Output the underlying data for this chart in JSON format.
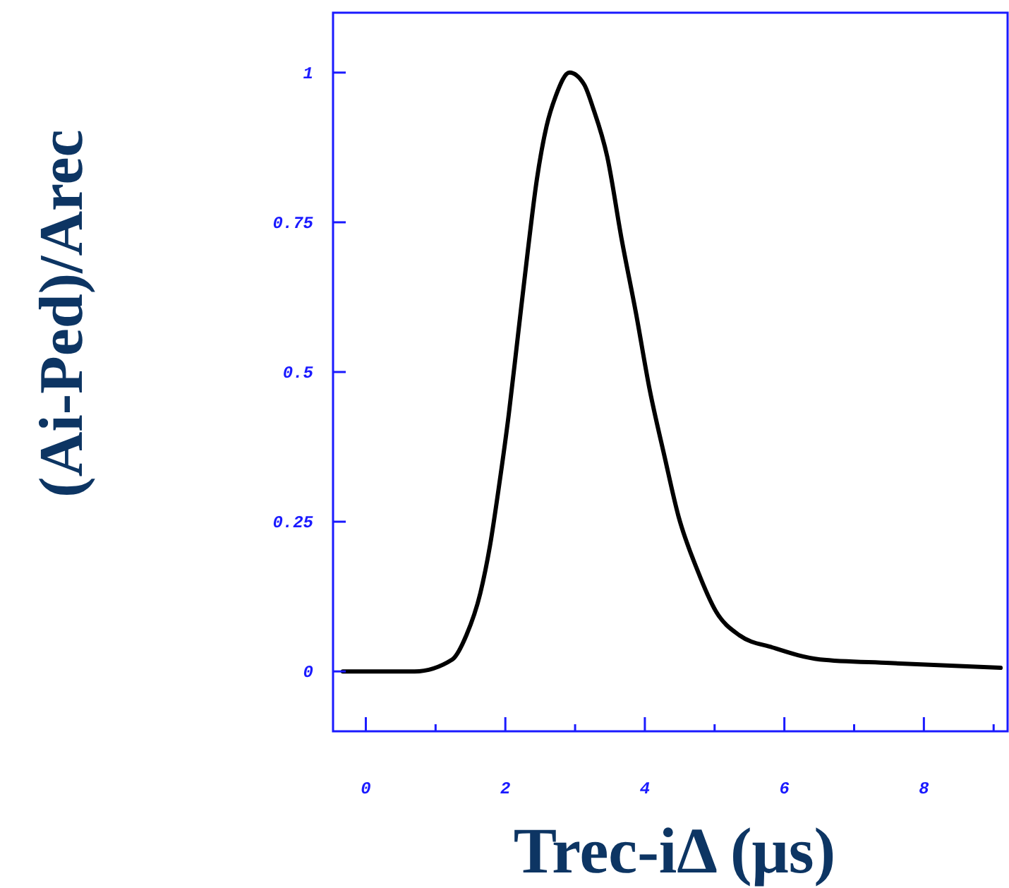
{
  "chart_data": {
    "type": "line",
    "xlabel": "Trec-iΔ  (μs)",
    "ylabel": "(Ai-Ped)/Arec",
    "xlim": [
      -0.47,
      9.2
    ],
    "ylim": [
      -0.1,
      1.1
    ],
    "xticks": [
      0,
      {
        "value": 1,
        "label": null
      },
      2,
      {
        "value": 3,
        "label": null
      },
      4,
      {
        "value": 5,
        "label": null
      },
      6,
      {
        "value": 7,
        "label": null
      },
      8,
      {
        "value": 9,
        "label": null
      }
    ],
    "yticks": [
      0,
      0.25,
      0.5,
      0.75,
      1
    ],
    "grid": false,
    "marker": "none",
    "line_style": "solid",
    "series": [
      {
        "color": "#000000",
        "x": [
          -0.33,
          0.26,
          0.7,
          1.24,
          1.44,
          1.64,
          1.78,
          1.91,
          2.05,
          2.18,
          2.32,
          2.45,
          2.59,
          2.72,
          2.92,
          3.13,
          3.26,
          3.46,
          3.67,
          3.87,
          4.07,
          4.28,
          4.48,
          4.75,
          5.02,
          5.36,
          5.83,
          6.51,
          7.52,
          9.1
        ],
        "values": [
          0,
          0,
          0,
          0.02,
          0.06,
          0.13,
          0.21,
          0.31,
          0.43,
          0.56,
          0.7,
          0.82,
          0.91,
          0.96,
          1,
          0.98,
          0.94,
          0.86,
          0.72,
          0.6,
          0.47,
          0.36,
          0.26,
          0.17,
          0.1,
          0.06,
          0.04,
          0.02,
          0.014,
          0.006
        ]
      }
    ]
  }
}
